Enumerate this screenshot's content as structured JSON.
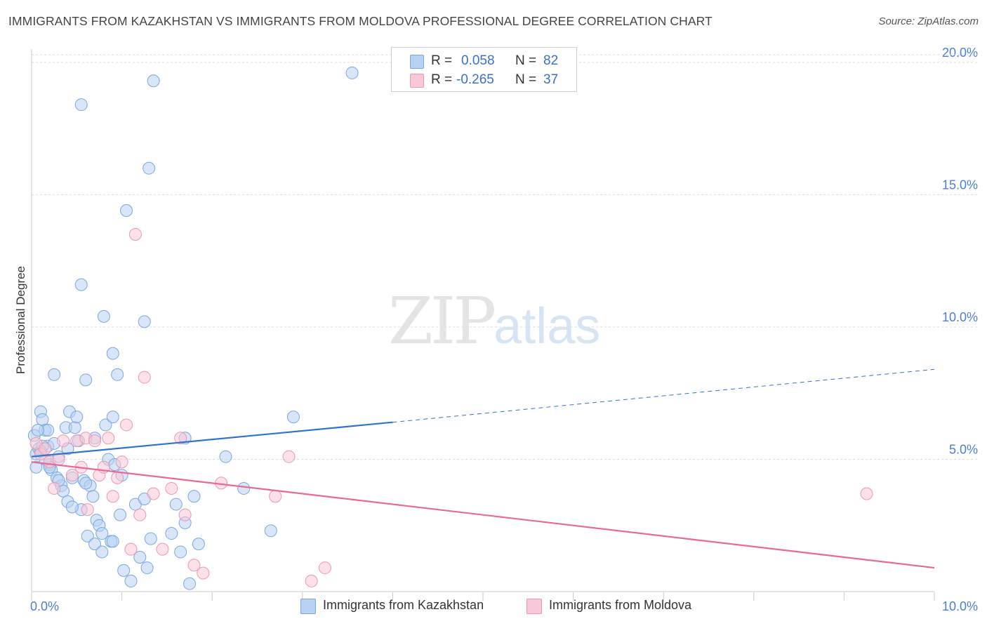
{
  "title": "IMMIGRANTS FROM KAZAKHSTAN VS IMMIGRANTS FROM MOLDOVA PROFESSIONAL DEGREE CORRELATION CHART",
  "source": "Source: ZipAtlas.com",
  "watermark": {
    "zip": "ZIP",
    "atlas": "atlas"
  },
  "legend_top": [
    {
      "r_label": "R =",
      "r_value": "0.058",
      "n_label": "N =",
      "n_value": "82"
    },
    {
      "r_label": "R =",
      "r_value": "-0.265",
      "n_label": "N =",
      "n_value": "37"
    }
  ],
  "colors": {
    "kazakhstan_fill": "#b8d1f3",
    "kazakhstan_stroke": "#7aa7e0",
    "kazakhstan_line": "#2f72cf",
    "moldova_fill": "#f9c8d6",
    "moldova_stroke": "#eb97b2",
    "moldova_line": "#e86a94",
    "grid": "#dddddd",
    "tick": "#4a7fd4"
  },
  "chart_data": {
    "type": "scatter",
    "title": "IMMIGRANTS FROM KAZAKHSTAN VS IMMIGRANTS FROM MOLDOVA PROFESSIONAL DEGREE CORRELATION CHART",
    "xlabel": "",
    "ylabel": "Professional Degree",
    "xlim": [
      0,
      10
    ],
    "ylim": [
      0,
      20.5
    ],
    "x_tick_labels": [
      "0.0%",
      "10.0%"
    ],
    "y_ticks": [
      5,
      10,
      15,
      20
    ],
    "y_tick_labels": [
      "5.0%",
      "10.0%",
      "15.0%",
      "20.0%"
    ],
    "legend_position": "bottom",
    "series": [
      {
        "name": "Immigrants from Kazakhstan",
        "points": [
          [
            0.03,
            5.9
          ],
          [
            0.05,
            5.2
          ],
          [
            0.08,
            5.4
          ],
          [
            0.1,
            6.8
          ],
          [
            0.12,
            6.5
          ],
          [
            0.15,
            6.1
          ],
          [
            0.18,
            5.5
          ],
          [
            0.2,
            4.8
          ],
          [
            0.22,
            4.6
          ],
          [
            0.25,
            8.2
          ],
          [
            0.28,
            4.3
          ],
          [
            0.3,
            5.1
          ],
          [
            0.33,
            4.0
          ],
          [
            0.35,
            3.8
          ],
          [
            0.38,
            6.2
          ],
          [
            0.4,
            3.4
          ],
          [
            0.42,
            6.8
          ],
          [
            0.45,
            4.3
          ],
          [
            0.48,
            6.2
          ],
          [
            0.5,
            6.6
          ],
          [
            0.52,
            5.7
          ],
          [
            0.55,
            3.1
          ],
          [
            0.58,
            4.2
          ],
          [
            0.6,
            8.0
          ],
          [
            0.62,
            2.1
          ],
          [
            0.65,
            4.0
          ],
          [
            0.7,
            1.8
          ],
          [
            0.72,
            2.7
          ],
          [
            0.75,
            2.5
          ],
          [
            0.78,
            1.5
          ],
          [
            0.8,
            10.4
          ],
          [
            0.82,
            6.3
          ],
          [
            0.85,
            5.0
          ],
          [
            0.88,
            1.9
          ],
          [
            0.9,
            9.0
          ],
          [
            0.92,
            4.8
          ],
          [
            0.95,
            8.2
          ],
          [
            0.98,
            2.9
          ],
          [
            1.0,
            4.4
          ],
          [
            1.05,
            14.4
          ],
          [
            1.1,
            0.4
          ],
          [
            1.15,
            3.3
          ],
          [
            1.2,
            1.3
          ],
          [
            1.25,
            3.5
          ],
          [
            1.3,
            16.0
          ],
          [
            1.32,
            2.0
          ],
          [
            1.35,
            19.3
          ],
          [
            1.55,
            2.2
          ],
          [
            1.6,
            3.3
          ],
          [
            1.65,
            1.5
          ],
          [
            1.7,
            2.6
          ],
          [
            1.75,
            0.3
          ],
          [
            1.8,
            3.6
          ],
          [
            1.85,
            1.8
          ],
          [
            0.55,
            18.4
          ],
          [
            0.55,
            11.6
          ],
          [
            1.25,
            10.2
          ],
          [
            0.2,
            4.7
          ],
          [
            0.18,
            6.1
          ],
          [
            0.15,
            5.0
          ],
          [
            0.1,
            5.3
          ],
          [
            0.3,
            4.2
          ],
          [
            0.45,
            3.2
          ],
          [
            0.6,
            4.1
          ],
          [
            0.7,
            5.8
          ],
          [
            0.9,
            6.6
          ],
          [
            0.4,
            5.4
          ],
          [
            0.25,
            5.6
          ],
          [
            0.05,
            4.7
          ],
          [
            0.12,
            5.5
          ],
          [
            1.02,
            0.8
          ],
          [
            1.28,
            0.9
          ],
          [
            0.78,
            2.2
          ],
          [
            0.9,
            1.9
          ],
          [
            0.68,
            3.6
          ],
          [
            2.15,
            5.1
          ],
          [
            2.35,
            3.9
          ],
          [
            2.9,
            6.6
          ],
          [
            3.55,
            19.6
          ],
          [
            2.65,
            2.3
          ],
          [
            1.7,
            5.8
          ],
          [
            0.07,
            6.1
          ]
        ]
      },
      {
        "name": "Immigrants from Moldova",
        "points": [
          [
            0.05,
            5.6
          ],
          [
            0.1,
            5.2
          ],
          [
            0.15,
            5.4
          ],
          [
            0.2,
            4.9
          ],
          [
            0.25,
            3.9
          ],
          [
            0.3,
            5.0
          ],
          [
            0.35,
            5.7
          ],
          [
            0.45,
            4.4
          ],
          [
            0.5,
            5.7
          ],
          [
            0.55,
            4.7
          ],
          [
            0.6,
            5.8
          ],
          [
            0.62,
            3.1
          ],
          [
            0.7,
            5.7
          ],
          [
            0.75,
            4.4
          ],
          [
            0.8,
            4.7
          ],
          [
            0.85,
            5.8
          ],
          [
            0.9,
            3.6
          ],
          [
            0.95,
            4.3
          ],
          [
            1.0,
            4.9
          ],
          [
            1.05,
            6.3
          ],
          [
            1.1,
            1.6
          ],
          [
            1.15,
            13.5
          ],
          [
            1.2,
            2.9
          ],
          [
            1.25,
            8.1
          ],
          [
            1.35,
            3.7
          ],
          [
            1.45,
            1.6
          ],
          [
            1.55,
            3.9
          ],
          [
            1.65,
            5.8
          ],
          [
            1.7,
            2.9
          ],
          [
            1.8,
            1.0
          ],
          [
            1.9,
            0.7
          ],
          [
            2.1,
            4.1
          ],
          [
            2.7,
            3.6
          ],
          [
            2.85,
            5.1
          ],
          [
            3.1,
            0.4
          ],
          [
            3.25,
            0.9
          ],
          [
            9.25,
            3.7
          ]
        ]
      }
    ],
    "trendlines": [
      {
        "series": "Immigrants from Kazakhstan",
        "x": [
          0,
          4
        ],
        "y": [
          5.1,
          6.4
        ],
        "extended_x": [
          4,
          10
        ],
        "extended_y": [
          6.4,
          8.4
        ],
        "style": "solid then dashed"
      },
      {
        "series": "Immigrants from Moldova",
        "x": [
          0,
          10
        ],
        "y": [
          4.9,
          0.9
        ],
        "style": "solid"
      }
    ]
  },
  "legend_bottom": [
    {
      "label": "Immigrants from Kazakhstan"
    },
    {
      "label": "Immigrants from Moldova"
    }
  ]
}
